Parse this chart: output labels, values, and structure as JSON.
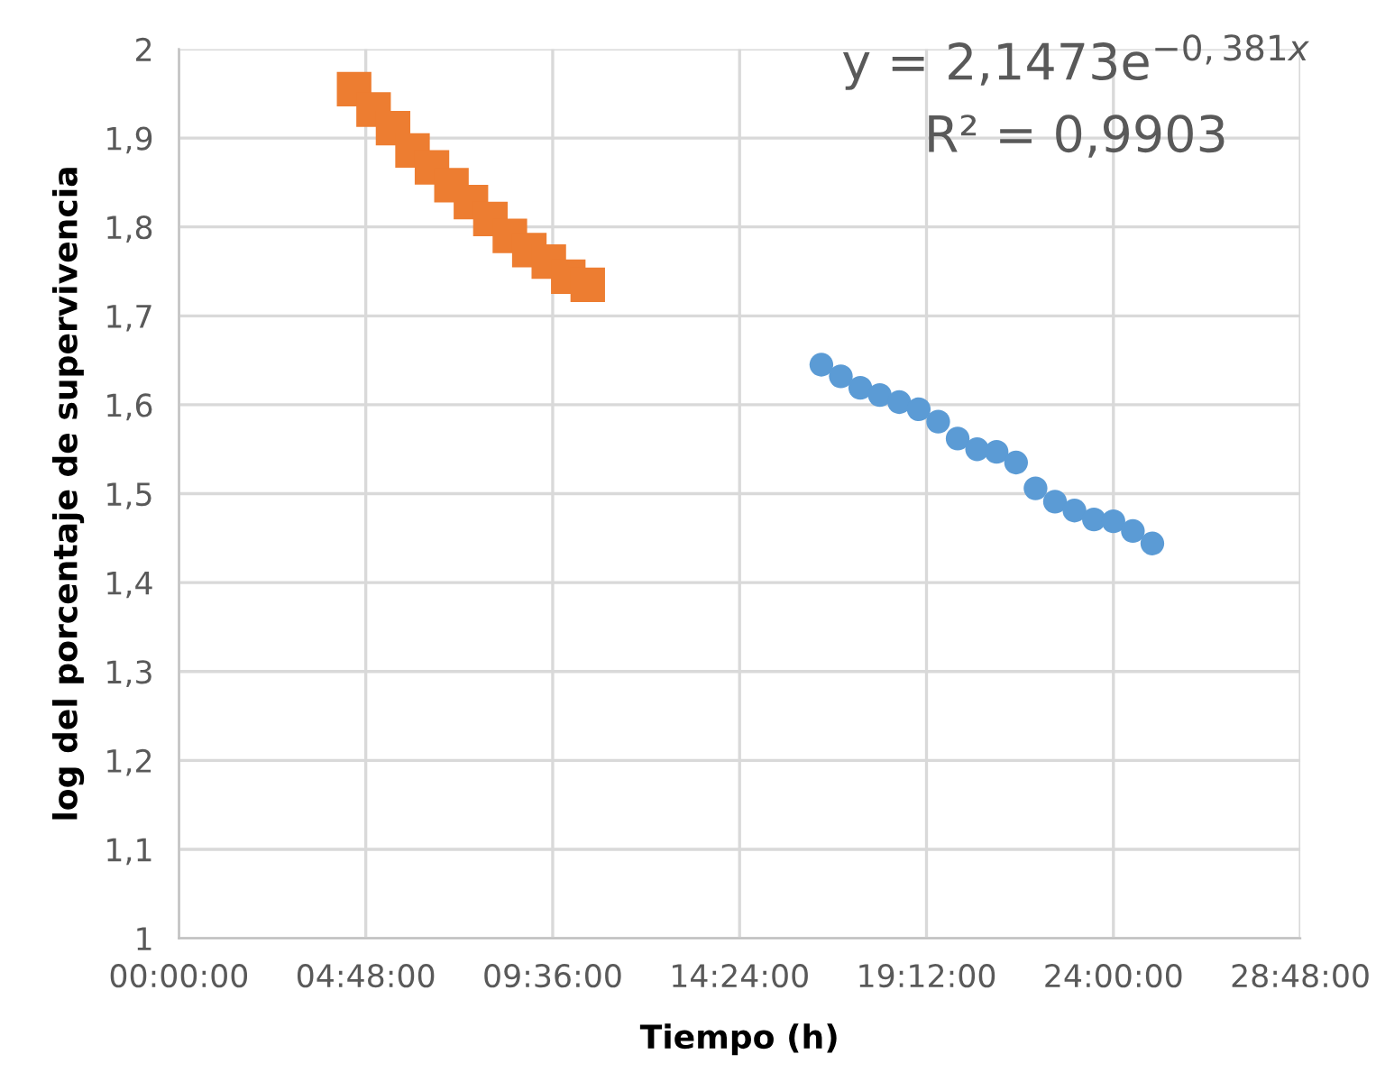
{
  "chart_data": {
    "type": "scatter",
    "xlabel": "Tiempo (h)",
    "ylabel": "log del porcentaje de supervivencia",
    "annotations": [
      "y = 2,1473e$^{−0,381x}$",
      "R² = 0,9903"
    ],
    "series": [
      {
        "color": "#ed7d31",
        "marker": "square",
        "x": [
          4.5,
          5.0,
          5.5,
          6.0,
          6.5,
          7.0,
          7.5,
          8.0,
          8.5,
          9.0,
          9.5,
          10.0,
          10.5
        ],
        "values": [
          1.955,
          1.932,
          1.911,
          1.886,
          1.867,
          1.847,
          1.828,
          1.809,
          1.79,
          1.774,
          1.761,
          1.744,
          1.735
        ]
      },
      {
        "color": "#5b9bd5",
        "marker": "circle",
        "x": [
          16.5,
          17.0,
          17.5,
          18.0,
          18.5,
          19.0,
          19.5,
          20.0,
          20.5,
          21.0,
          21.5,
          22.0,
          22.5,
          23.0,
          23.5,
          24.0,
          24.5,
          25.0
        ],
        "values": [
          1.645,
          1.632,
          1.619,
          1.611,
          1.603,
          1.595,
          1.581,
          1.562,
          1.55,
          1.547,
          1.535,
          1.506,
          1.491,
          1.481,
          1.471,
          1.469,
          1.458,
          1.444
        ]
      }
    ],
    "xlim": [
      0,
      28.8
    ],
    "xticks": [
      {
        "value": 0,
        "label": "00:00:00"
      },
      {
        "value": 4.8,
        "label": "04:48:00"
      },
      {
        "value": 9.6,
        "label": "09:36:00"
      },
      {
        "value": 14.4,
        "label": "14:24:00"
      },
      {
        "value": 19.2,
        "label": "19:12:00"
      },
      {
        "value": 24,
        "label": "24:00:00"
      },
      {
        "value": 28.8,
        "label": "28:48:00"
      }
    ],
    "ylim": [
      1,
      2
    ],
    "yticks": [
      {
        "value": 1,
        "label": "1"
      },
      {
        "value": 1.1,
        "label": "1,1"
      },
      {
        "value": 1.2,
        "label": "1,2"
      },
      {
        "value": 1.3,
        "label": "1,3"
      },
      {
        "value": 1.4,
        "label": "1,4"
      },
      {
        "value": 1.5,
        "label": "1,5"
      },
      {
        "value": 1.6,
        "label": "1,6"
      },
      {
        "value": 1.7,
        "label": "1,7"
      },
      {
        "value": 1.8,
        "label": "1,8"
      },
      {
        "value": 1.9,
        "label": "1,9"
      },
      {
        "value": 2,
        "label": "2"
      }
    ],
    "grid": true,
    "legend": false
  }
}
